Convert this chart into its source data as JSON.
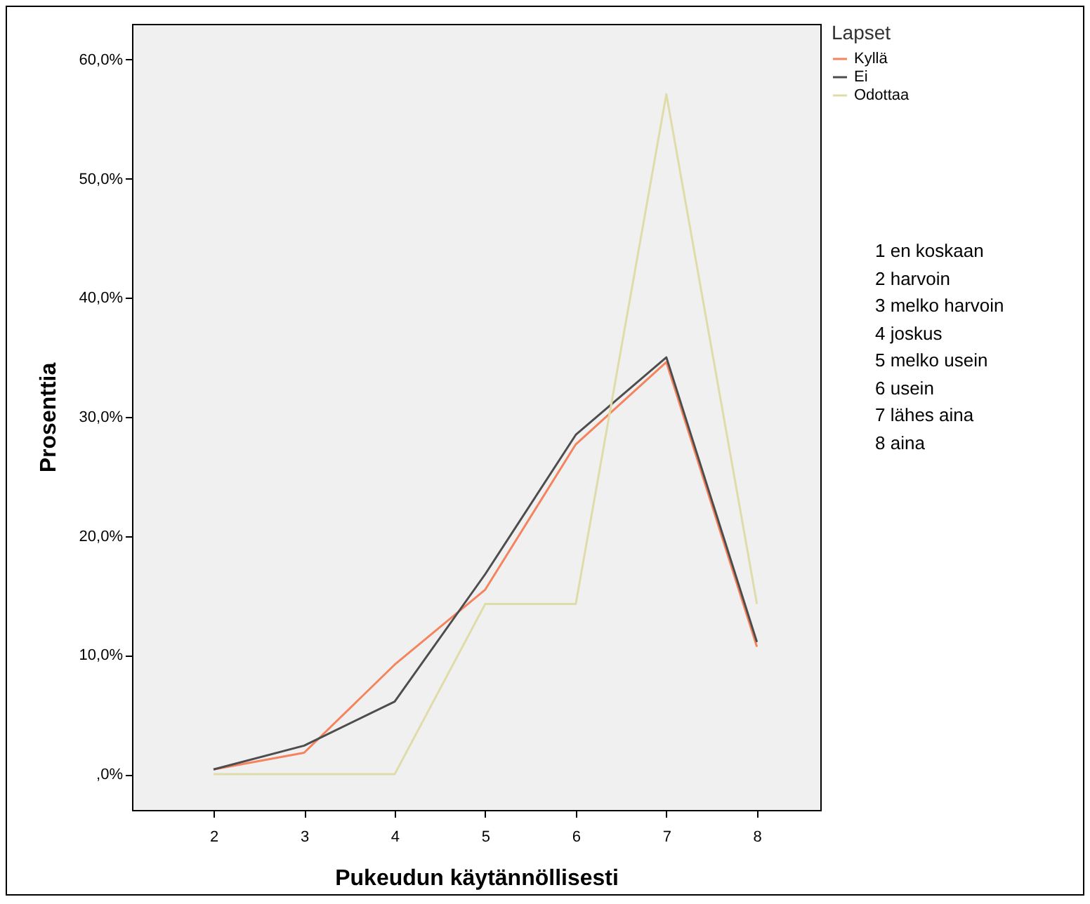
{
  "chart_data": {
    "type": "line",
    "xlabel": "Pukeudun käytännöllisesti",
    "ylabel": "Prosenttia",
    "legend_title": "Lapset",
    "legend": "top right",
    "grid": false,
    "marker": "none",
    "line_style": "solid",
    "x": [
      2,
      3,
      4,
      5,
      6,
      7,
      8
    ],
    "xlim": [
      1.1,
      8.7
    ],
    "xticks": [
      2,
      3,
      4,
      5,
      6,
      7,
      8
    ],
    "ylim": [
      -3,
      63
    ],
    "yticks": [
      {
        "value": 0,
        "label": ",0%"
      },
      {
        "value": 10,
        "label": "10,0%"
      },
      {
        "value": 20,
        "label": "20,0%"
      },
      {
        "value": 30,
        "label": "30,0%"
      },
      {
        "value": 40,
        "label": "40,0%"
      },
      {
        "value": 50,
        "label": "50,0%"
      },
      {
        "value": 60,
        "label": "60,0%"
      }
    ],
    "series": [
      {
        "name": "Kyllä",
        "color": "#f5845e",
        "values": [
          0.4,
          1.8,
          9.2,
          15.5,
          27.7,
          34.6,
          10.7
        ]
      },
      {
        "name": "Ei",
        "color": "#4d4d4d",
        "values": [
          0.4,
          2.4,
          6.1,
          16.8,
          28.5,
          35.0,
          11.1
        ]
      },
      {
        "name": "Odottaa",
        "color": "#e0dcaa",
        "values": [
          0,
          0,
          0,
          14.3,
          14.3,
          57.1,
          14.3
        ]
      }
    ],
    "annotations": [
      "1 en koskaan",
      "2 harvoin",
      "3 melko harvoin",
      "4 joskus",
      "5 melko usein",
      "6 usein",
      "7 lähes aina",
      "8 aina"
    ]
  }
}
